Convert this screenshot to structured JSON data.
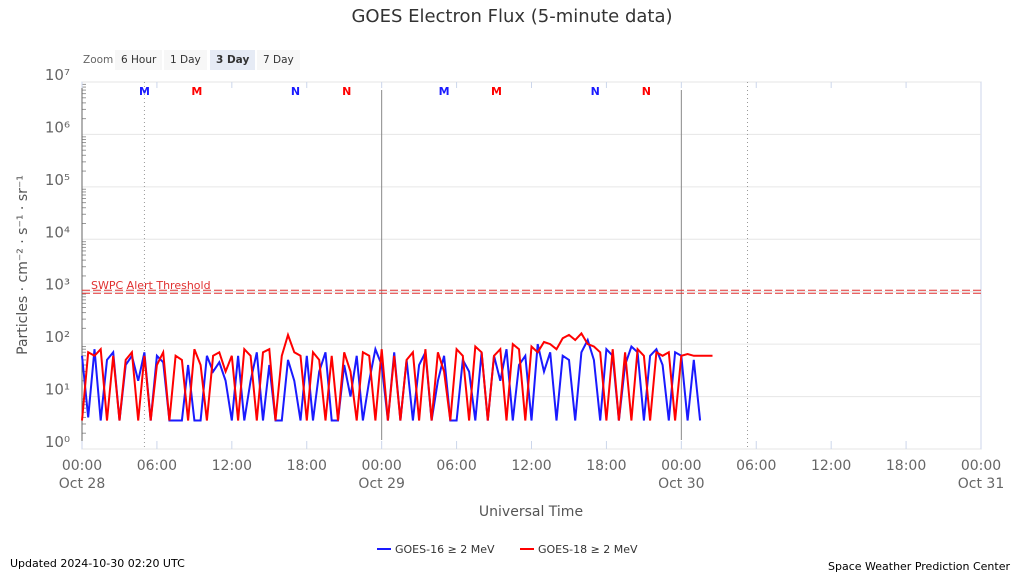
{
  "title": "GOES Electron Flux (5-minute data)",
  "zoom": {
    "label": "Zoom",
    "buttons": [
      "6 Hour",
      "1 Day",
      "3 Day",
      "7 Day"
    ],
    "selected": "3 Day"
  },
  "updated": "Updated 2024-10-30 02:20 UTC",
  "credit": "Space Weather Prediction Center",
  "colors": {
    "goes16": "#1a1aff",
    "goes18": "#ff0000",
    "threshold": "#e03030"
  },
  "chart_data": {
    "type": "line",
    "title": "GOES Electron Flux (5-minute data)",
    "xlabel": "Universal Time",
    "ylabel": "Particles · cm⁻² · s⁻¹ · sr⁻¹",
    "yscale": "log",
    "ylim": [
      1,
      10000000
    ],
    "ytick_labels": [
      "10⁰",
      "10¹",
      "10²",
      "10³",
      "10⁴",
      "10⁵",
      "10⁶",
      "10⁷"
    ],
    "xlim_hours": [
      0,
      72
    ],
    "x_start": "2024-10-28 00:00 UTC",
    "x_step_hours": 0.5,
    "xtick_labels": [
      [
        "00:00",
        "Oct 28"
      ],
      [
        "06:00",
        ""
      ],
      [
        "12:00",
        ""
      ],
      [
        "18:00",
        ""
      ],
      [
        "00:00",
        "Oct 29"
      ],
      [
        "06:00",
        ""
      ],
      [
        "12:00",
        ""
      ],
      [
        "18:00",
        ""
      ],
      [
        "00:00",
        "Oct 30"
      ],
      [
        "06:00",
        ""
      ],
      [
        "12:00",
        ""
      ],
      [
        "18:00",
        ""
      ],
      [
        "00:00",
        "Oct 31"
      ]
    ],
    "threshold": {
      "label": "SWPC Alert Threshold",
      "value": 1000
    },
    "markers": [
      {
        "text": "M",
        "series": "GOES-16",
        "hour": 5
      },
      {
        "text": "M",
        "series": "GOES-18",
        "hour": 9.2
      },
      {
        "text": "N",
        "series": "GOES-16",
        "hour": 17.1
      },
      {
        "text": "N",
        "series": "GOES-18",
        "hour": 21.2
      },
      {
        "text": "M",
        "series": "GOES-16",
        "hour": 29
      },
      {
        "text": "M",
        "series": "GOES-18",
        "hour": 33.2
      },
      {
        "text": "N",
        "series": "GOES-16",
        "hour": 41.1
      },
      {
        "text": "N",
        "series": "GOES-18",
        "hour": 45.2
      }
    ],
    "series": [
      {
        "name": "GOES-16 ≥ 2 MeV",
        "values": [
          60,
          4,
          80,
          3.5,
          50,
          70,
          3.5,
          40,
          60,
          20,
          70,
          3.5,
          60,
          45,
          3.5,
          3.5,
          3.5,
          40,
          3.5,
          3.5,
          60,
          30,
          45,
          20,
          3.5,
          60,
          3.5,
          20,
          70,
          3.5,
          40,
          3.5,
          3.5,
          50,
          20,
          3.5,
          60,
          3.5,
          30,
          70,
          3.5,
          3.5,
          40,
          10,
          60,
          3.5,
          20,
          80,
          40,
          3.5,
          70,
          3.5,
          50,
          3.5,
          40,
          70,
          3.5,
          20,
          60,
          3.5,
          3.5,
          50,
          30,
          3.5,
          70,
          3.5,
          60,
          20,
          80,
          3.5,
          40,
          60,
          3.5,
          100,
          30,
          70,
          3.5,
          60,
          50,
          3.5,
          70,
          120,
          50,
          3.5,
          80,
          60,
          3.5,
          40,
          90,
          70,
          3.5,
          60,
          80,
          40,
          3.5,
          70,
          60,
          3.5,
          50,
          3.5
        ]
      },
      {
        "name": "GOES-18 ≥ 2 MeV",
        "values": [
          3.5,
          70,
          60,
          80,
          3.5,
          60,
          3.5,
          50,
          70,
          3.5,
          60,
          3.5,
          40,
          70,
          3.5,
          60,
          50,
          3.5,
          80,
          40,
          3.5,
          60,
          70,
          30,
          60,
          3.5,
          80,
          60,
          3.5,
          70,
          80,
          3.5,
          60,
          150,
          70,
          60,
          3.5,
          70,
          50,
          3.5,
          60,
          3.5,
          70,
          30,
          3.5,
          70,
          60,
          3.5,
          80,
          3.5,
          60,
          3.5,
          50,
          70,
          3.5,
          80,
          3.5,
          70,
          30,
          3.5,
          80,
          60,
          3.5,
          90,
          70,
          3.5,
          60,
          80,
          3.5,
          100,
          80,
          3.5,
          90,
          70,
          110,
          100,
          80,
          130,
          150,
          120,
          160,
          100,
          90,
          70,
          3.5,
          80,
          3.5,
          70,
          3.5,
          80,
          60,
          3.5,
          70,
          60,
          70,
          3.5,
          60,
          65,
          60,
          60,
          60,
          60
        ]
      }
    ]
  }
}
